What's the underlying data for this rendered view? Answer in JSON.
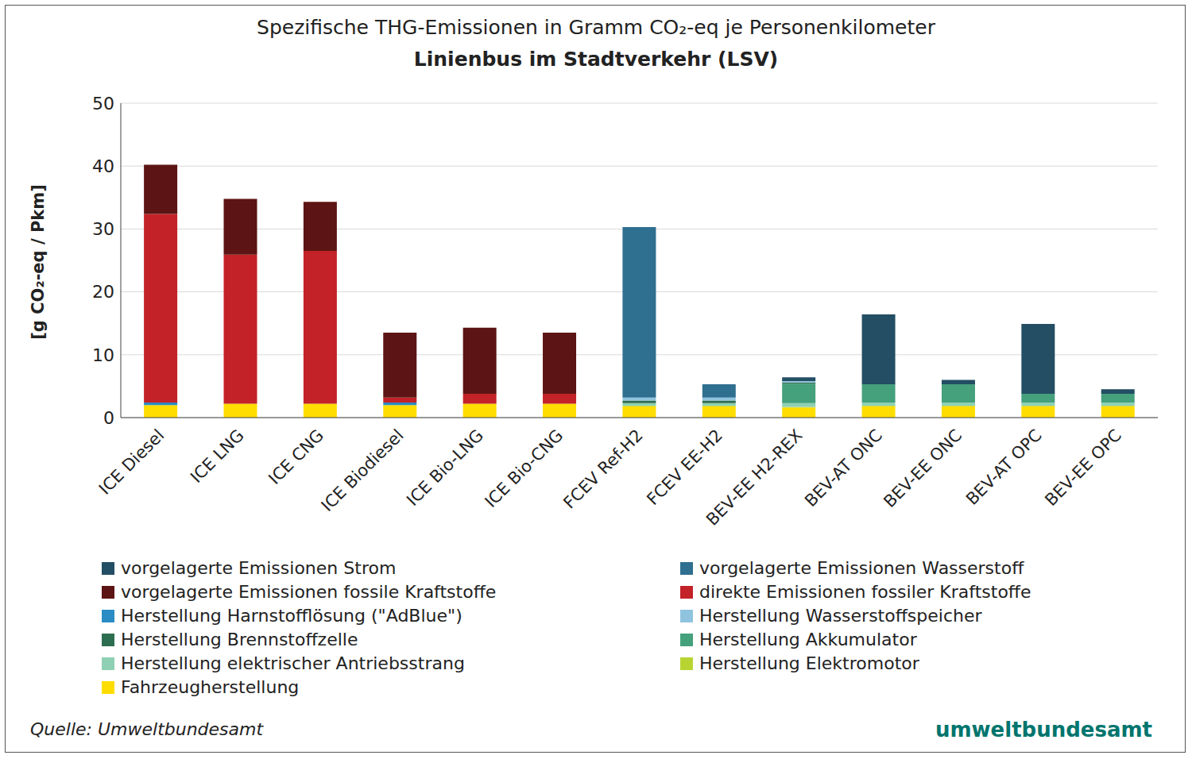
{
  "chart_data": {
    "type": "bar",
    "title": "Spezifische THG-Emissionen in Gramm CO₂-eq je Personenkilometer",
    "subtitle": "Linienbus im Stadtverkehr (LSV)",
    "y_label": "[g CO₂-eq / Pkm]",
    "source": "Quelle: Umweltbundesamt",
    "logo": "umweltbundesamt",
    "stacked": true,
    "grid": true,
    "legend": "bottom",
    "ylim": [
      0,
      50
    ],
    "yticks": [
      0,
      10,
      20,
      30,
      40,
      50
    ],
    "categories": [
      "ICE Diesel",
      "ICE LNG",
      "ICE CNG",
      "ICE Biodiesel",
      "ICE Bio-LNG",
      "ICE Bio-CNG",
      "FCEV Ref-H2",
      "FCEV EE-H2",
      "BEV-EE H2-REX",
      "BEV-AT ONC",
      "BEV-EE ONC",
      "BEV-AT OPC",
      "BEV-EE OPC"
    ],
    "series": [
      {
        "name": "vorgelagerte Emissionen Strom",
        "color": "#234e63",
        "values": [
          0,
          0,
          0,
          0,
          0,
          0,
          0,
          0,
          0.6,
          11.1,
          0.7,
          11.1,
          0.7
        ]
      },
      {
        "name": "vorgelagerte Emissionen Wasserstoff",
        "color": "#2f6f8f",
        "values": [
          0,
          0,
          0,
          0,
          0,
          0,
          27.1,
          2.1,
          0,
          0,
          0,
          0,
          0
        ]
      },
      {
        "name": "vorgelagerte Emissionen fossile Kraftstoffe",
        "color": "#5c1414",
        "values": [
          7.8,
          8.9,
          7.8,
          10.3,
          10.5,
          9.7,
          0,
          0,
          0,
          0,
          0,
          0,
          0
        ]
      },
      {
        "name": "direkte Emissionen fossiler Kraftstoffe",
        "color": "#c32228",
        "values": [
          30.0,
          23.7,
          24.3,
          0.8,
          1.6,
          1.6,
          0,
          0,
          0,
          0,
          0,
          0,
          0
        ]
      },
      {
        "name": "Herstellung Harnstofflösung (\"AdBlue\")",
        "color": "#2b8cc4",
        "values": [
          0.4,
          0,
          0,
          0.4,
          0,
          0,
          0,
          0,
          0,
          0,
          0,
          0,
          0
        ]
      },
      {
        "name": "Herstellung Wasserstoffspeicher",
        "color": "#8fc3de",
        "values": [
          0,
          0,
          0,
          0,
          0,
          0,
          0.5,
          0.5,
          0.2,
          0,
          0,
          0,
          0
        ]
      },
      {
        "name": "Herstellung Brennstoffzelle",
        "color": "#2e6e50",
        "values": [
          0,
          0,
          0,
          0,
          0,
          0,
          0.4,
          0.4,
          0.2,
          0,
          0,
          0,
          0
        ]
      },
      {
        "name": "Herstellung Akkumulator",
        "color": "#45a07c",
        "values": [
          0,
          0,
          0,
          0,
          0,
          0,
          0,
          0,
          3.1,
          2.9,
          2.9,
          1.4,
          1.4
        ]
      },
      {
        "name": "Herstellung elektrischer Antriebsstrang",
        "color": "#8fd0b4",
        "values": [
          0,
          0,
          0,
          0,
          0,
          0,
          0.4,
          0.4,
          0.6,
          0.5,
          0.5,
          0.5,
          0.5
        ]
      },
      {
        "name": "Herstellung Elektromotor",
        "color": "#b8d432",
        "values": [
          0,
          0,
          0,
          0,
          0,
          0,
          0.1,
          0.1,
          0.1,
          0.1,
          0.1,
          0.1,
          0.1
        ]
      },
      {
        "name": "Fahrzeugherstellung",
        "color": "#ffdd00",
        "values": [
          2.0,
          2.2,
          2.2,
          2.0,
          2.2,
          2.2,
          1.8,
          1.8,
          1.6,
          1.8,
          1.8,
          1.8,
          1.8
        ]
      }
    ]
  }
}
